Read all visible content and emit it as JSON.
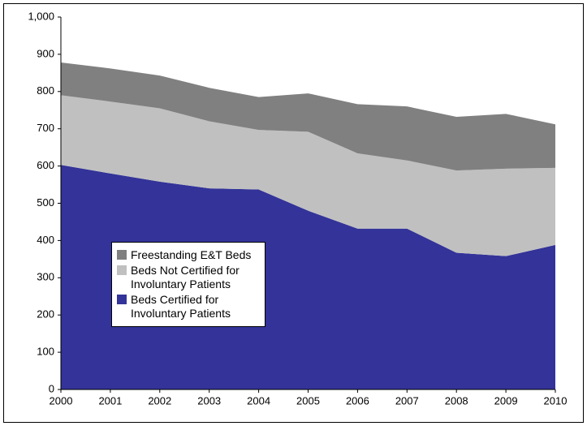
{
  "chart_data": {
    "type": "stacked-area",
    "x": [
      2000,
      2001,
      2002,
      2003,
      2004,
      2005,
      2006,
      2007,
      2008,
      2009,
      2010
    ],
    "xlim": [
      2000,
      2010
    ],
    "ylim": [
      0,
      1000
    ],
    "yticks": [
      0,
      100,
      200,
      300,
      400,
      500,
      600,
      700,
      800,
      900,
      {
        "value": 1000,
        "label": "1,000"
      }
    ],
    "series": [
      {
        "name": "Beds Certified for Involuntary Patients",
        "color": "#333399",
        "values": [
          603,
          580,
          558,
          540,
          537,
          480,
          432,
          432,
          367,
          358,
          388
        ]
      },
      {
        "name": "Beds Not Certified for Involuntary Patients",
        "color": "#c0c0c0",
        "values": [
          187,
          193,
          197,
          180,
          160,
          212,
          202,
          183,
          221,
          235,
          207
        ]
      },
      {
        "name": "Freestanding E&T Beds",
        "color": "#808080",
        "values": [
          88,
          89,
          88,
          90,
          88,
          103,
          132,
          145,
          144,
          147,
          117
        ]
      }
    ]
  }
}
